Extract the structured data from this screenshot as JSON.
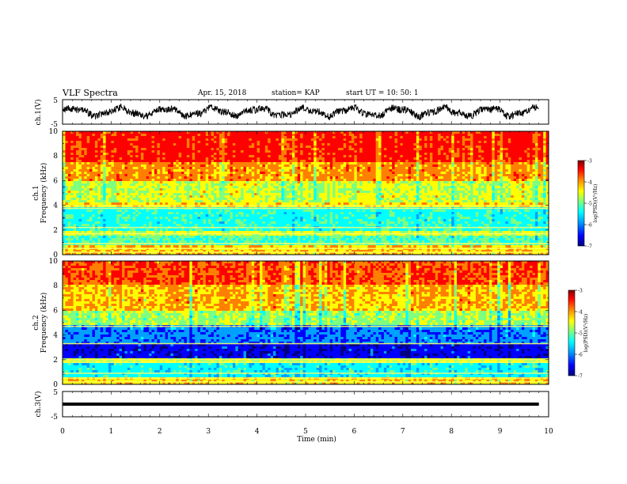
{
  "header": {
    "title": "VLF Spectra",
    "date": "Apr. 15, 2018",
    "station": "station= KAP",
    "start": "start  UT =   10: 50: 1"
  },
  "chart_data": [
    {
      "type": "line",
      "panel": "ch1-waveform",
      "ylabel": "ch.1(V)",
      "ylim": [
        -5,
        5
      ],
      "yticks": [
        "5",
        "-5"
      ],
      "xlim": [
        0,
        10
      ],
      "series": [
        {
          "description_color": "#000000"
        }
      ]
    },
    {
      "type": "heatmap",
      "panel": "ch1-spectrogram",
      "ylabel_line1": "ch.1",
      "ylabel_line2": "Frequency (kHz)",
      "ylim": [
        0,
        10
      ],
      "yticks": [
        "0",
        "2",
        "4",
        "6",
        "8",
        "10"
      ],
      "xlim": [
        0,
        10
      ],
      "colorbar": {
        "label": "log(PSD)(V²/Hz)",
        "range": [
          -7,
          -3
        ],
        "ticks": [
          "-3",
          "-4",
          "-5",
          "-6",
          "-7"
        ]
      }
    },
    {
      "type": "heatmap",
      "panel": "ch2-spectrogram",
      "ylabel_line1": "ch.2",
      "ylabel_line2": "Frequency (kHz)",
      "ylim": [
        0,
        10
      ],
      "yticks": [
        "0",
        "2",
        "4",
        "6",
        "8",
        "10"
      ],
      "xlim": [
        0,
        10
      ],
      "colorbar": {
        "label": "log(PSD)(V²/Hz)",
        "range": [
          -7,
          -3
        ],
        "ticks": [
          "-3",
          "-4",
          "-5",
          "-6",
          "-7"
        ]
      }
    },
    {
      "type": "line",
      "panel": "ch3-waveform",
      "ylabel": "ch.3(V)",
      "ylim": [
        -5,
        5
      ],
      "yticks": [
        "5",
        "-5"
      ],
      "xlim": [
        0,
        10
      ],
      "xlabel": "Time  (min)",
      "xticks": [
        "0",
        "1",
        "2",
        "3",
        "4",
        "5",
        "6",
        "7",
        "8",
        "9",
        "10"
      ],
      "data_end_min": 9.8
    }
  ],
  "colormap": [
    "#00007f",
    "#0000ff",
    "#00a0ff",
    "#00ffff",
    "#7fff7f",
    "#ffff00",
    "#ff8000",
    "#ff0000",
    "#7f0000"
  ]
}
